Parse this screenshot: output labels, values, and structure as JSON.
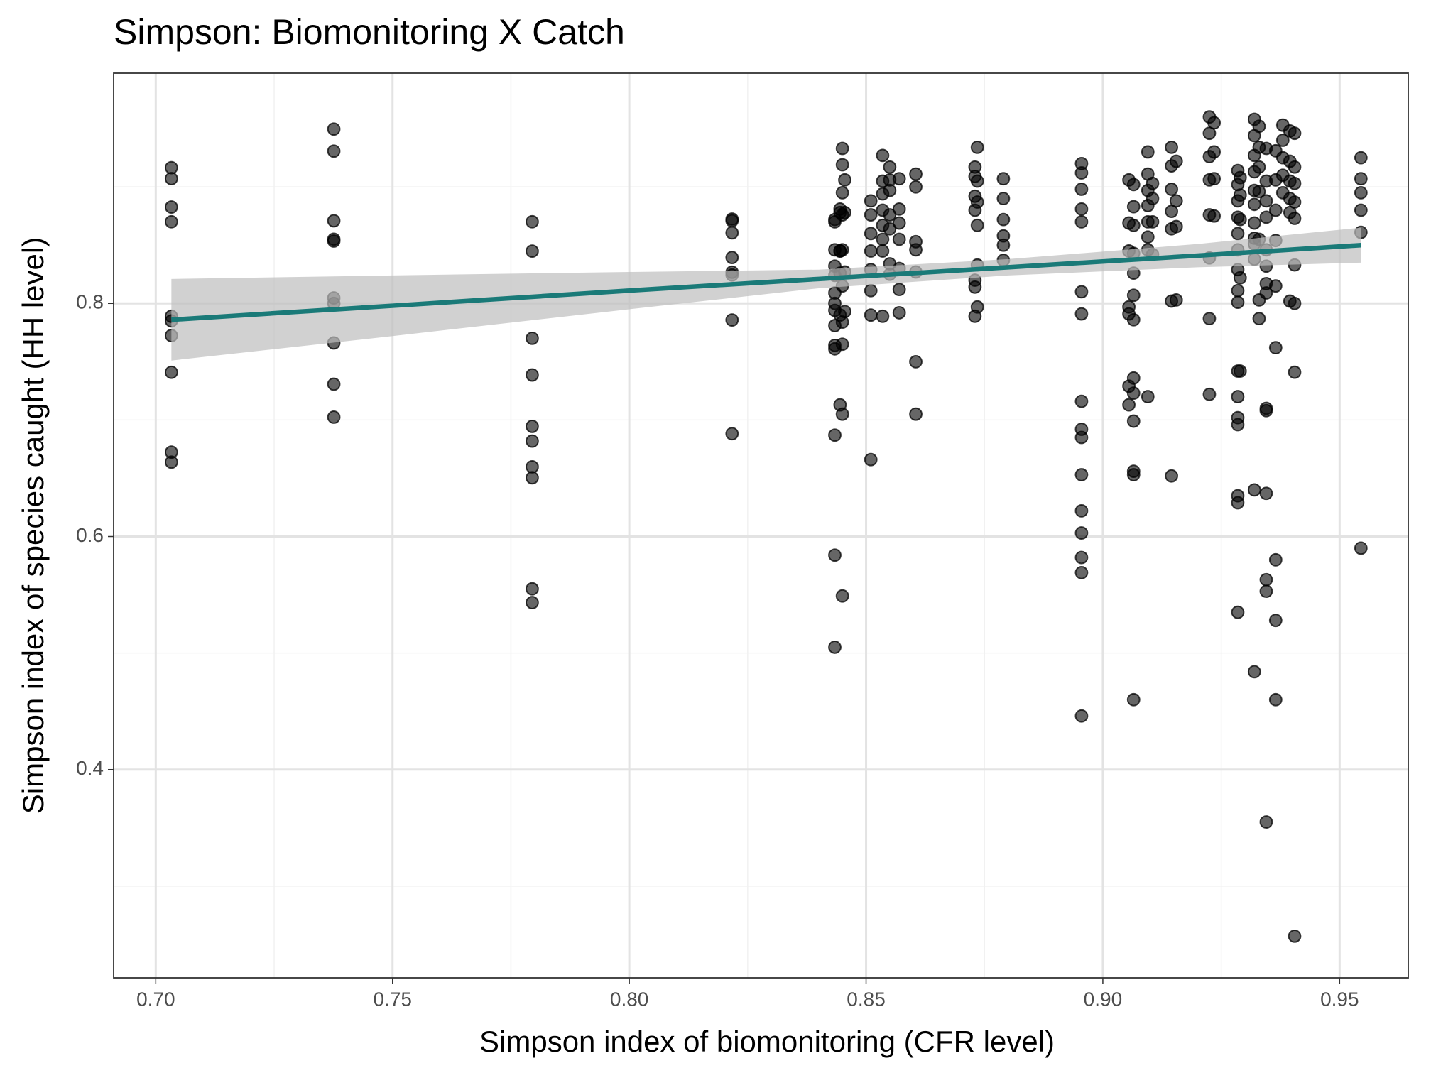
{
  "chart_data": {
    "type": "scatter",
    "title": "Simpson: Biomonitoring X Catch",
    "x_label": "Simpson index of biomonitoring (CFR level)",
    "y_label": "Simpson index of species caught (HH level)",
    "xlim": [
      0.6911,
      0.9645
    ],
    "ylim": [
      0.2213,
      0.9976
    ],
    "xticks": [
      {
        "value": 0.7,
        "label": "0.70"
      },
      {
        "value": 0.75,
        "label": "0.75"
      },
      {
        "value": 0.8,
        "label": "0.80"
      },
      {
        "value": 0.85,
        "label": "0.85"
      },
      {
        "value": 0.9,
        "label": "0.90"
      },
      {
        "value": 0.95,
        "label": "0.95"
      }
    ],
    "yticks": [
      0.4,
      0.6,
      0.8
    ],
    "xminor": [
      0.725,
      0.775,
      0.825,
      0.875,
      0.925
    ],
    "yminor": [
      0.3,
      0.5,
      0.7,
      0.9
    ],
    "grid": true,
    "point_color": "#000000",
    "points": [
      {
        "x": 0.7033,
        "y": [
          0.9165,
          0.9071,
          0.8827,
          0.8701,
          0.789,
          0.785,
          0.7724,
          0.7409,
          0.6724,
          0.6638
        ]
      },
      {
        "x": 0.7376,
        "y": [
          0.9496,
          0.9307,
          0.8709,
          0.8551,
          0.8535,
          0.8047,
          0.8,
          0.7661,
          0.7307,
          0.7024
        ]
      },
      {
        "x": 0.7795,
        "y": [
          0.8701,
          0.8449,
          0.7701,
          0.7386,
          0.6945,
          0.6819,
          0.6598,
          0.6504,
          0.5551,
          0.5433
        ]
      },
      {
        "x": 0.8217,
        "y": [
          0.8724,
          0.8709,
          0.8606,
          0.8394,
          0.8268,
          0.8244,
          0.7858,
          0.6882
        ]
      },
      {
        "x": 0.8434,
        "y": [
          0.872,
          0.846,
          0.832,
          0.824,
          0.809,
          0.794,
          0.781,
          0.761,
          0.764,
          0.687,
          0.584,
          0.505,
          0.87,
          0.8
        ]
      },
      {
        "x": 0.8445,
        "y": [
          0.881,
          0.845,
          0.826,
          0.79,
          0.713,
          0.878,
          0.845
        ]
      },
      {
        "x": 0.845,
        "y": [
          0.933,
          0.919,
          0.895,
          0.876,
          0.846,
          0.815,
          0.784,
          0.765,
          0.705,
          0.549
        ]
      },
      {
        "x": 0.8455,
        "y": [
          0.906,
          0.878,
          0.827,
          0.793
        ]
      },
      {
        "x": 0.851,
        "y": [
          0.888,
          0.876,
          0.86,
          0.845,
          0.829,
          0.811,
          0.79,
          0.666
        ]
      },
      {
        "x": 0.8535,
        "y": [
          0.927,
          0.905,
          0.894,
          0.88,
          0.867,
          0.855,
          0.845,
          0.789
        ]
      },
      {
        "x": 0.855,
        "y": [
          0.917,
          0.906,
          0.897,
          0.876,
          0.864,
          0.834,
          0.825
        ]
      },
      {
        "x": 0.857,
        "y": [
          0.907,
          0.881,
          0.869,
          0.855,
          0.83,
          0.812,
          0.792
        ]
      },
      {
        "x": 0.8605,
        "y": [
          0.911,
          0.9,
          0.853,
          0.846,
          0.827,
          0.75,
          0.705
        ]
      },
      {
        "x": 0.873,
        "y": [
          0.917,
          0.909,
          0.892,
          0.88,
          0.82,
          0.814,
          0.789
        ]
      },
      {
        "x": 0.8735,
        "y": [
          0.934,
          0.905,
          0.887,
          0.867,
          0.833,
          0.797
        ]
      },
      {
        "x": 0.879,
        "y": [
          0.907,
          0.89,
          0.872,
          0.858,
          0.85,
          0.837
        ]
      },
      {
        "x": 0.8955,
        "y": [
          0.92,
          0.912,
          0.898,
          0.881,
          0.87,
          0.81,
          0.791,
          0.716,
          0.692,
          0.685,
          0.653,
          0.622,
          0.603,
          0.582,
          0.569,
          0.446
        ]
      },
      {
        "x": 0.9055,
        "y": [
          0.906,
          0.869,
          0.845,
          0.797,
          0.791,
          0.729,
          0.713
        ]
      },
      {
        "x": 0.9065,
        "y": [
          0.902,
          0.883,
          0.867,
          0.843,
          0.826,
          0.807,
          0.786,
          0.736,
          0.723,
          0.699,
          0.656,
          0.653,
          0.46
        ]
      },
      {
        "x": 0.9095,
        "y": [
          0.93,
          0.911,
          0.897,
          0.884,
          0.87,
          0.857,
          0.846,
          0.72
        ]
      },
      {
        "x": 0.9105,
        "y": [
          0.903,
          0.89,
          0.87,
          0.842
        ]
      },
      {
        "x": 0.9145,
        "y": [
          0.934,
          0.918,
          0.898,
          0.879,
          0.864,
          0.802,
          0.652
        ]
      },
      {
        "x": 0.9155,
        "y": [
          0.922,
          0.888,
          0.866,
          0.803
        ]
      },
      {
        "x": 0.9225,
        "y": [
          0.96,
          0.946,
          0.926,
          0.906,
          0.876,
          0.839,
          0.787,
          0.722
        ]
      },
      {
        "x": 0.9235,
        "y": [
          0.955,
          0.93,
          0.907,
          0.875
        ]
      },
      {
        "x": 0.9285,
        "y": [
          0.914,
          0.902,
          0.888,
          0.874,
          0.86,
          0.846,
          0.829,
          0.811,
          0.801,
          0.742,
          0.72,
          0.702,
          0.696,
          0.635,
          0.629,
          0.535
        ]
      },
      {
        "x": 0.929,
        "y": [
          0.908,
          0.893,
          0.872,
          0.822,
          0.742
        ]
      },
      {
        "x": 0.932,
        "y": [
          0.958,
          0.944,
          0.927,
          0.913,
          0.897,
          0.885,
          0.869,
          0.856,
          0.851,
          0.838,
          0.64,
          0.484
        ]
      },
      {
        "x": 0.933,
        "y": [
          0.952,
          0.934,
          0.917,
          0.896,
          0.855,
          0.803,
          0.787
        ]
      },
      {
        "x": 0.9345,
        "y": [
          0.933,
          0.905,
          0.888,
          0.874,
          0.846,
          0.832,
          0.817,
          0.809,
          0.71,
          0.708,
          0.637,
          0.563,
          0.553,
          0.355
        ]
      },
      {
        "x": 0.9365,
        "y": [
          0.931,
          0.906,
          0.88,
          0.854,
          0.815,
          0.762,
          0.58,
          0.528,
          0.46
        ]
      },
      {
        "x": 0.938,
        "y": [
          0.953,
          0.94,
          0.925,
          0.91,
          0.895
        ]
      },
      {
        "x": 0.9395,
        "y": [
          0.948,
          0.922,
          0.905,
          0.89,
          0.878,
          0.802
        ]
      },
      {
        "x": 0.9405,
        "y": [
          0.946,
          0.917,
          0.903,
          0.887,
          0.873,
          0.833,
          0.8,
          0.741,
          0.257
        ]
      },
      {
        "x": 0.9545,
        "y": [
          0.925,
          0.907,
          0.895,
          0.88,
          0.861,
          0.59
        ]
      }
    ],
    "fit": {
      "color": "#1a7a78",
      "band_color": "#bdbdbd",
      "x": [
        0.7033,
        0.75,
        0.8,
        0.84,
        0.88,
        0.92,
        0.9545
      ],
      "values": [
        0.786,
        0.798,
        0.811,
        0.821,
        0.831,
        0.841,
        0.85
      ],
      "lower": [
        0.751,
        0.772,
        0.795,
        0.813,
        0.824,
        0.831,
        0.835
      ],
      "upper": [
        0.821,
        0.824,
        0.827,
        0.829,
        0.838,
        0.851,
        0.865
      ]
    }
  }
}
